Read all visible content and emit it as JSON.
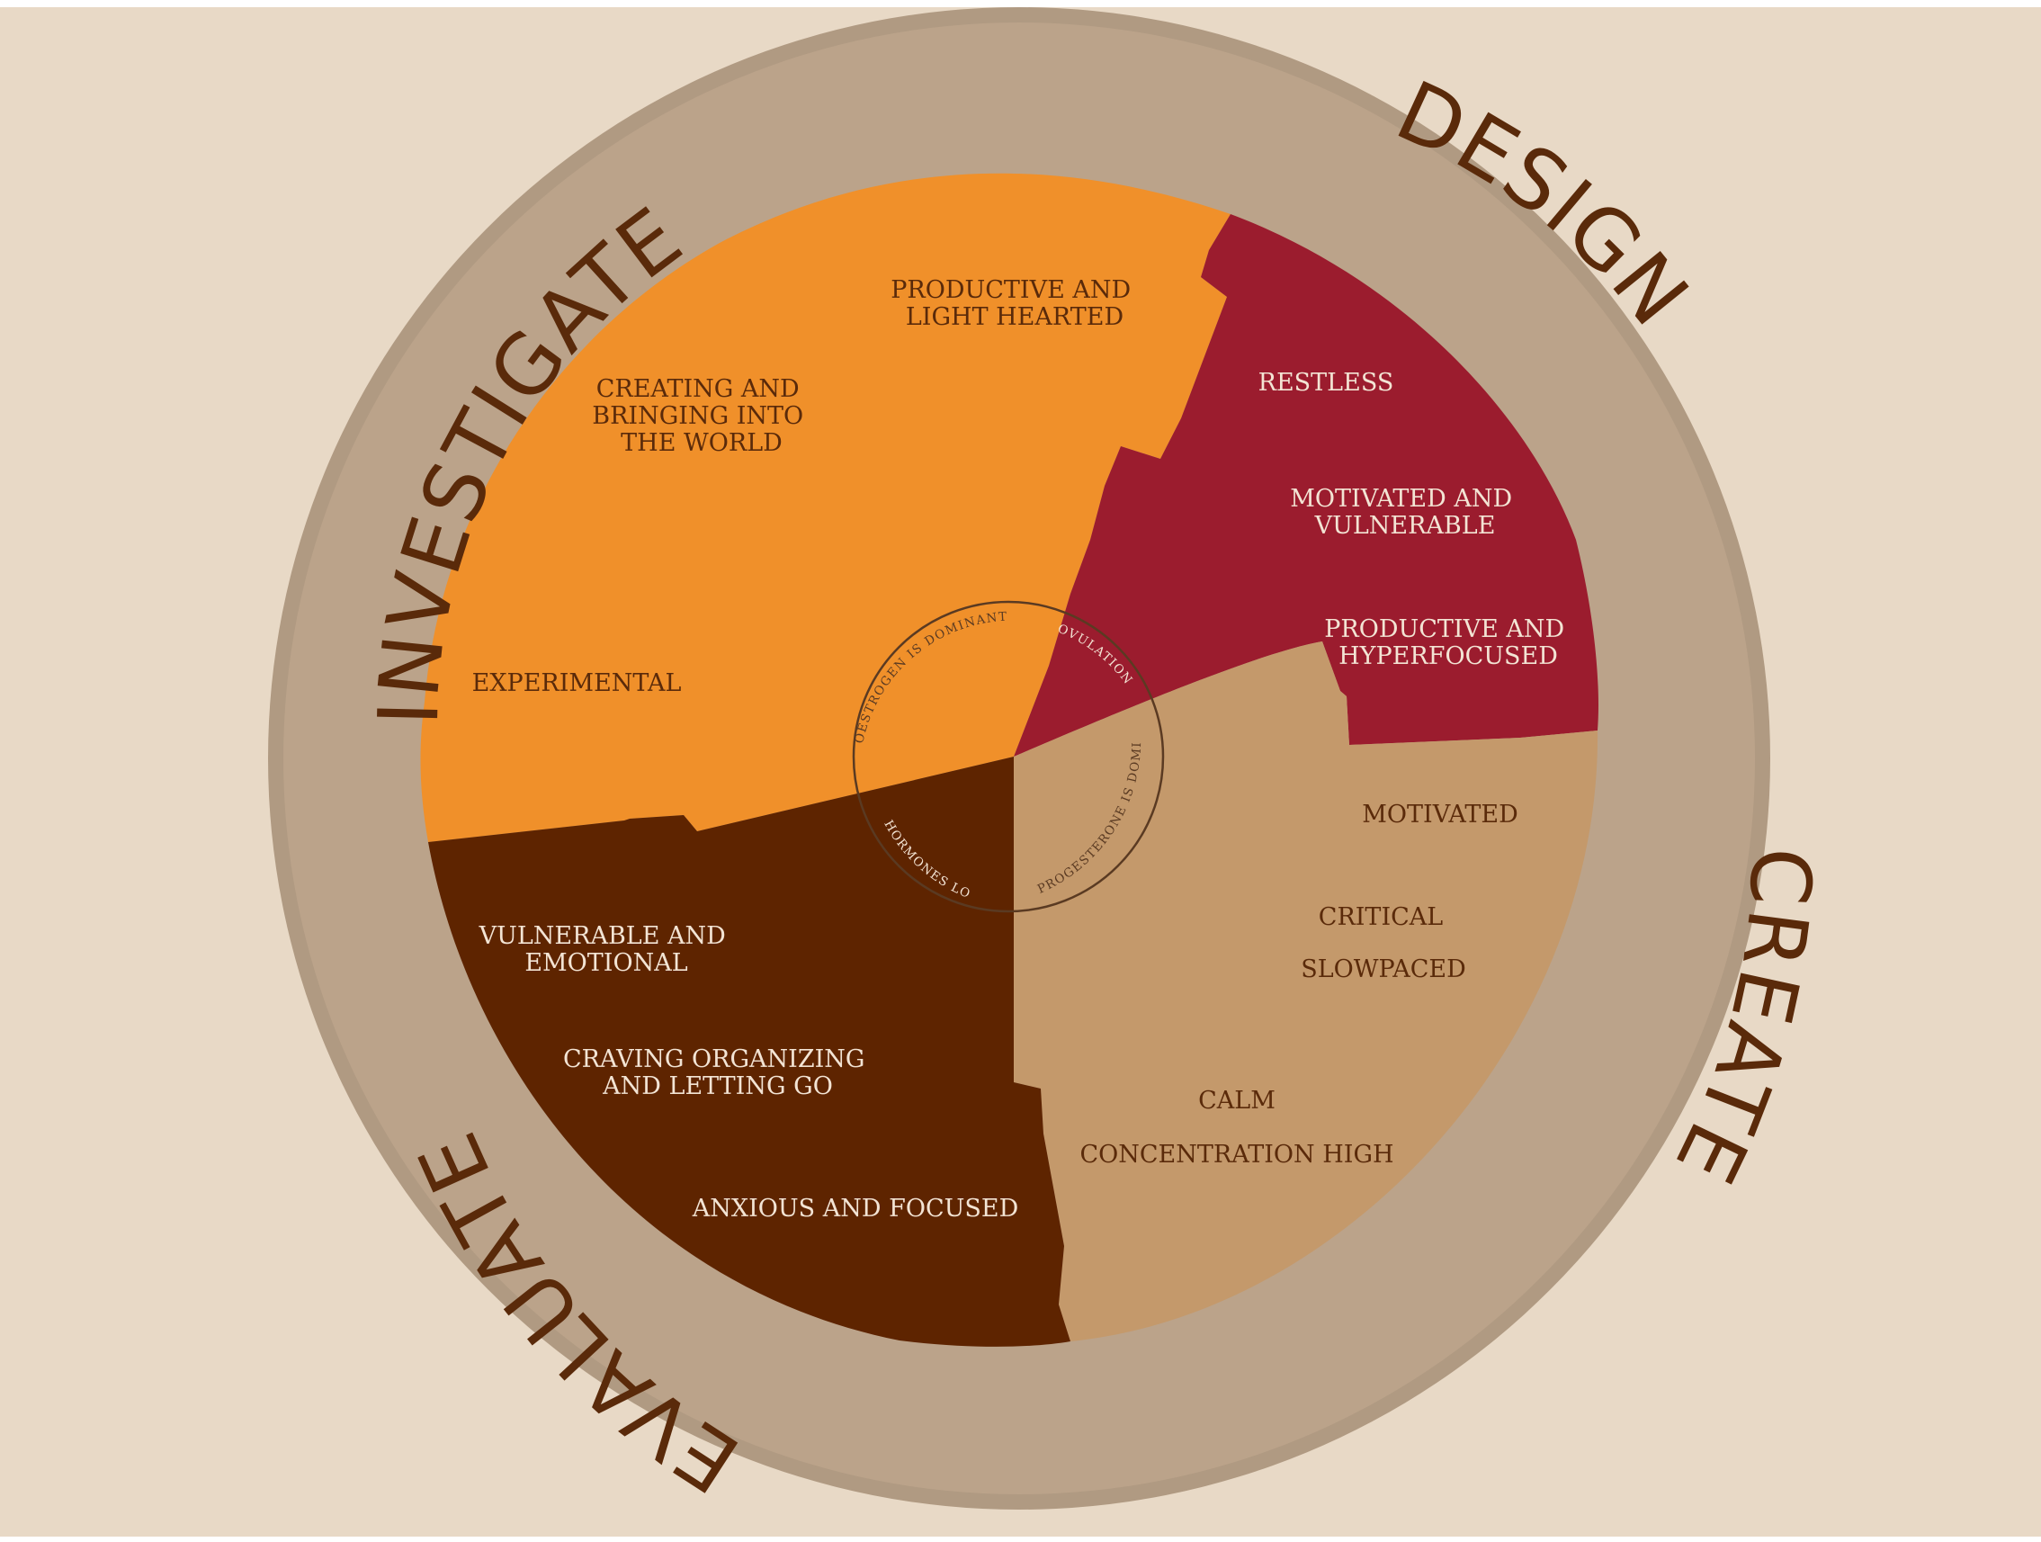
{
  "colors": {
    "page_border": "#ffffff",
    "background": "#e8d9c6",
    "outer_disc": "#b09a82",
    "ring": "#bba38a",
    "investigate": "#f0902a",
    "design": "#9b1c2e",
    "create": "#c4996b",
    "evaluate": "#5e2400",
    "dark_text": "#5a2a0a",
    "light_text": "#f3e4d4",
    "inner_circle": "#5a3a22"
  },
  "ring_labels": {
    "investigate": "INVESTIGATE",
    "design": "DESIGN",
    "create": "CREATE",
    "evaluate": "EVALUATE"
  },
  "inner_labels": {
    "oestrogen": "OESTROGEN IS DOMINANT",
    "ovulation": "OVULATION",
    "progesterone": "PROGESTERONE IS DOMINANT",
    "hormones": "HORMONES LOW"
  },
  "sectors": {
    "investigate": [
      [
        "PRODUCTIVE AND",
        "LIGHT HEARTED"
      ],
      [
        "CREATING AND",
        "BRINGING INTO",
        "THE WORLD"
      ],
      [
        "EXPERIMENTAL"
      ]
    ],
    "design": [
      [
        "RESTLESS"
      ],
      [
        "MOTIVATED AND",
        "VULNERABLE"
      ],
      [
        "PRODUCTIVE AND",
        "HYPERFOCUSED"
      ]
    ],
    "create": [
      [
        "MOTIVATED"
      ],
      [
        "CRITICAL"
      ],
      [
        "SLOWPACED"
      ],
      [
        "CALM"
      ],
      [
        "CONCENTRATION HIGH"
      ]
    ],
    "evaluate": [
      [
        "VULNERABLE AND",
        "EMOTIONAL"
      ],
      [
        "CRAVING ORGANIZING",
        "AND LETTING GO"
      ],
      [
        "ANXIOUS AND FOCUSED"
      ]
    ]
  }
}
